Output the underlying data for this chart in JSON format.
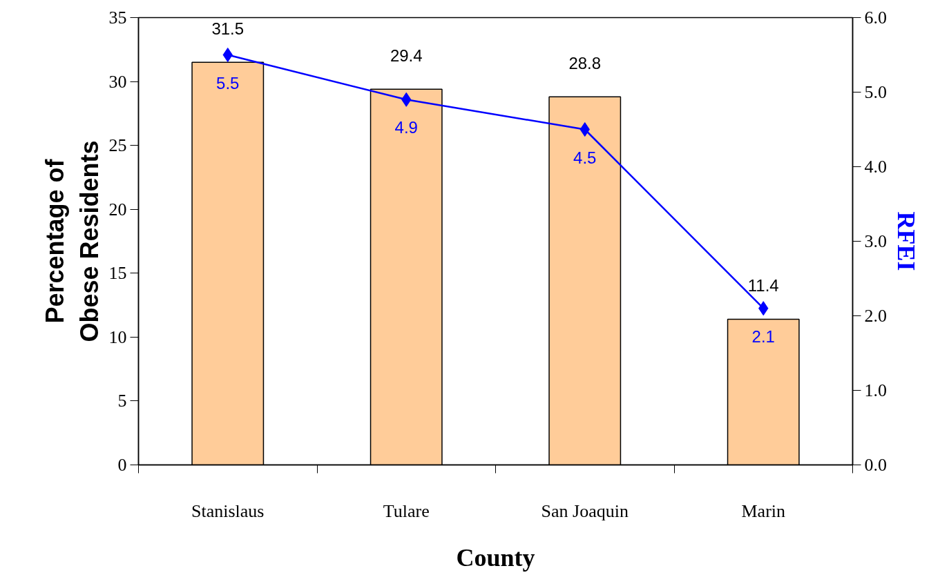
{
  "chart_data": {
    "type": "bar",
    "xlabel": "County",
    "ylabel": "Percentage of Obese Residents",
    "y2label": "RFEI",
    "categories": [
      "Stanislaus",
      "Tulare",
      "San Joaquin",
      "Marin"
    ],
    "series": [
      {
        "color": "#ffcc99",
        "values": [
          31.5,
          29.4,
          28.8,
          11.4
        ]
      },
      {
        "type": "line",
        "axis": "y2",
        "color": "#0000ff",
        "marker": "diamond",
        "values": [
          5.5,
          4.9,
          4.5,
          2.1
        ]
      }
    ],
    "ylim": [
      0,
      35
    ],
    "yticks": [
      0,
      5,
      10,
      15,
      20,
      25,
      30,
      35
    ],
    "y2lim": [
      0,
      6
    ],
    "y2ticks": [
      {
        "value": 0,
        "label": "0.0"
      },
      {
        "value": 1,
        "label": "1.0"
      },
      {
        "value": 2,
        "label": "2.0"
      },
      {
        "value": 3,
        "label": "3.0"
      },
      {
        "value": 4,
        "label": "4.0"
      },
      {
        "value": 5,
        "label": "5.0"
      },
      {
        "value": 6,
        "label": "6.0"
      }
    ],
    "data_labels": true,
    "grid": false
  }
}
